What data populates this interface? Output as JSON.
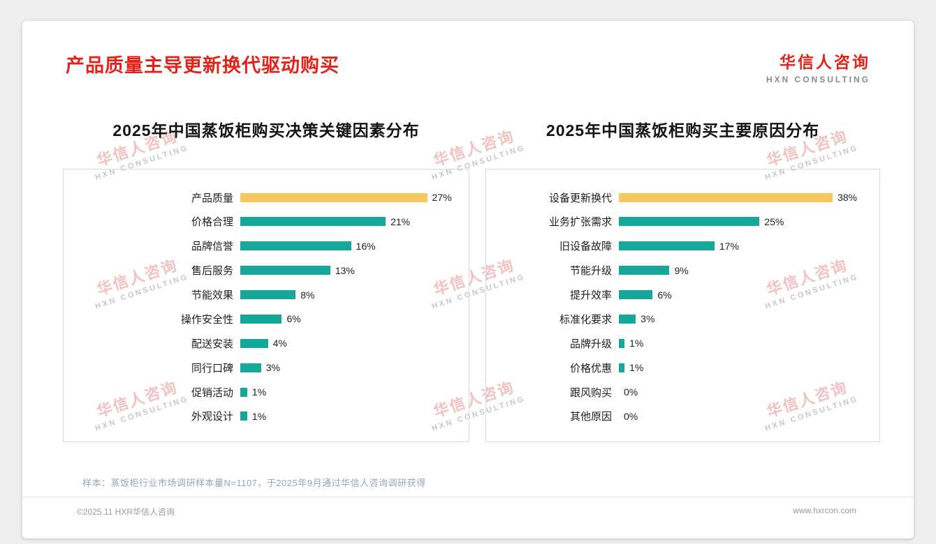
{
  "page": {
    "title": "产品质量主导更新换代驱动购买",
    "logo": {
      "cn": "华信人咨询",
      "en": "HXN CONSULTING"
    },
    "watermark": {
      "cn": "华信人咨询",
      "en": "HXN CONSULTING"
    },
    "note": "样本：蒸饭柜行业市场调研样本量N=1107，于2025年9月通过华信人咨询调研获得",
    "footer_left": "©2025.11 HXR华信人咨询",
    "footer_right": "www.hxrcon.com"
  },
  "colors": {
    "accent_red": "#e2231a",
    "bar_teal": "#15a79a",
    "bar_gold": "#f7c85f",
    "panel_border": "#c9ddee"
  },
  "chart_data": [
    {
      "type": "bar",
      "orientation": "horizontal",
      "title": "2025年中国蒸饭柜购买决策关键因素分布",
      "categories": [
        "产品质量",
        "价格合理",
        "品牌信誉",
        "售后服务",
        "节能效果",
        "操作安全性",
        "配送安装",
        "同行口碑",
        "促销活动",
        "外观设计"
      ],
      "values": [
        27,
        21,
        16,
        13,
        8,
        6,
        4,
        3,
        1,
        1
      ],
      "unit": "%",
      "xlim": [
        0,
        29
      ],
      "highlight_index": 0,
      "grid": false,
      "legend": false
    },
    {
      "type": "bar",
      "orientation": "horizontal",
      "title": "2025年中国蒸饭柜购买主要原因分布",
      "categories": [
        "设备更新换代",
        "业务扩张需求",
        "旧设备故障",
        "节能升级",
        "提升效率",
        "标准化要求",
        "品牌升级",
        "价格优惠",
        "跟风购买",
        "其他原因"
      ],
      "values": [
        38,
        25,
        17,
        9,
        6,
        3,
        1,
        1,
        0,
        0
      ],
      "unit": "%",
      "xlim": [
        0,
        41
      ],
      "highlight_index": 0,
      "grid": false,
      "legend": false
    }
  ]
}
